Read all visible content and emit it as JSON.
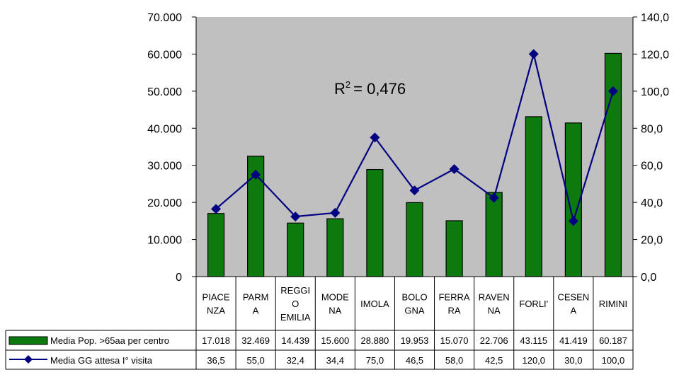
{
  "chart_data": {
    "type": "bar",
    "categories": [
      [
        "PIACE",
        "NZA"
      ],
      [
        "PARM",
        "A"
      ],
      [
        "REGGI",
        "O",
        "EMILIA"
      ],
      [
        "MODE",
        "NA"
      ],
      [
        "IMOLA"
      ],
      [
        "BOLO",
        "GNA"
      ],
      [
        "FERRA",
        "RA"
      ],
      [
        "RAVEN",
        "NA"
      ],
      [
        "FORLI'"
      ],
      [
        "CESEN",
        "A"
      ],
      [
        "RIMINI"
      ]
    ],
    "series": [
      {
        "name": "Media Pop. >65aa per centro",
        "type": "bar",
        "axis": "left",
        "color": "#0d7a0d",
        "values": [
          17018,
          32469,
          14439,
          15600,
          28880,
          19953,
          15070,
          22706,
          43115,
          41419,
          60187
        ],
        "labels": [
          "17.018",
          "32.469",
          "14.439",
          "15.600",
          "28.880",
          "19.953",
          "15.070",
          "22.706",
          "43.115",
          "41.419",
          "60.187"
        ]
      },
      {
        "name": "Media GG attesa I° visita",
        "type": "line",
        "axis": "right",
        "color": "#000080",
        "values": [
          36.5,
          55.0,
          32.4,
          34.4,
          75.0,
          46.5,
          58.0,
          42.5,
          120.0,
          30.0,
          100.0
        ],
        "labels": [
          "36,5",
          "55,0",
          "32,4",
          "34,4",
          "75,0",
          "46,5",
          "58,0",
          "42,5",
          "120,0",
          "30,0",
          "100,0"
        ]
      }
    ],
    "ylim": [
      0,
      70000
    ],
    "y2lim": [
      0,
      140
    ],
    "yticks": [
      "0",
      "10.000",
      "20.000",
      "30.000",
      "40.000",
      "50.000",
      "60.000",
      "70.000"
    ],
    "y2ticks": [
      "0,0",
      "20,0",
      "40,0",
      "60,0",
      "80,0",
      "100,0",
      "120,0",
      "140,0"
    ],
    "annotation": {
      "text": "= 0,476",
      "prefix": "R",
      "sup": "2"
    },
    "plot_background": "#c0c0c0",
    "grid": false,
    "legend": "data-table"
  }
}
